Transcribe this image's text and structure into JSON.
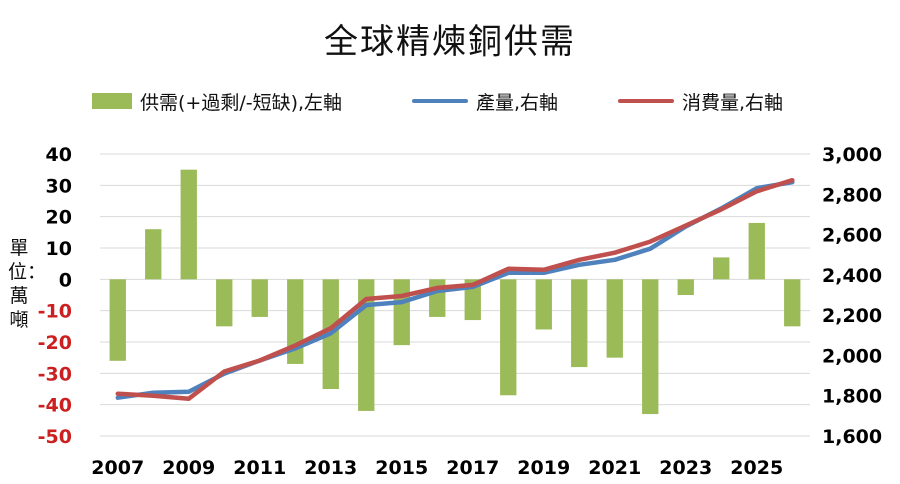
{
  "chart_data": {
    "type": "bar+line",
    "title": "全球精煉銅供需",
    "ylabel_left": "單位：萬噸",
    "x": [
      2007,
      2008,
      2009,
      2010,
      2011,
      2012,
      2013,
      2014,
      2015,
      2016,
      2017,
      2018,
      2019,
      2020,
      2021,
      2022,
      2023,
      2024,
      2025,
      2026
    ],
    "x_tick_labels": [
      "2007",
      "2009",
      "2011",
      "2013",
      "2015",
      "2017",
      "2019",
      "2021",
      "2023",
      "2025"
    ],
    "left_axis": {
      "ylim": [
        -50,
        40
      ],
      "ticks": [
        40,
        30,
        20,
        10,
        0,
        -10,
        -20,
        -30,
        -40,
        -50
      ],
      "tick_labels": [
        "40",
        "30",
        "20",
        "10",
        "0",
        "-10",
        "-20",
        "-30",
        "-40",
        "-50"
      ],
      "positive_color": "#000000",
      "negative_color": "#cc1f1f"
    },
    "right_axis": {
      "ylim": [
        1600,
        3000
      ],
      "ticks": [
        3000,
        2800,
        2600,
        2400,
        2200,
        2000,
        1800,
        1600
      ],
      "tick_labels": [
        "3,000",
        "2,800",
        "2,600",
        "2,400",
        "2,200",
        "2,000",
        "1,800",
        "1,600"
      ]
    },
    "grid": true,
    "legend_position": "top",
    "series": [
      {
        "name": "供需(+過剩/-短缺),左軸",
        "type": "bar",
        "axis": "left",
        "color": "#9bbb59",
        "values": [
          -26,
          16,
          35,
          -15,
          -12,
          -27,
          -35,
          -42,
          -21,
          -12,
          -13,
          -37,
          -16,
          -28,
          -25,
          -43,
          -5,
          7,
          18,
          -15
        ]
      },
      {
        "name": "產量,右軸",
        "type": "line",
        "axis": "right",
        "color": "#4f81bd",
        "values": [
          1790,
          1815,
          1820,
          1910,
          1975,
          2035,
          2110,
          2250,
          2265,
          2320,
          2340,
          2410,
          2410,
          2450,
          2475,
          2530,
          2640,
          2730,
          2830,
          2860
        ]
      },
      {
        "name": "消費量,右軸",
        "type": "line",
        "axis": "right",
        "color": "#c0504d",
        "values": [
          1810,
          1800,
          1785,
          1920,
          1975,
          2050,
          2135,
          2280,
          2295,
          2335,
          2350,
          2430,
          2425,
          2475,
          2510,
          2565,
          2645,
          2725,
          2815,
          2870
        ]
      }
    ]
  }
}
